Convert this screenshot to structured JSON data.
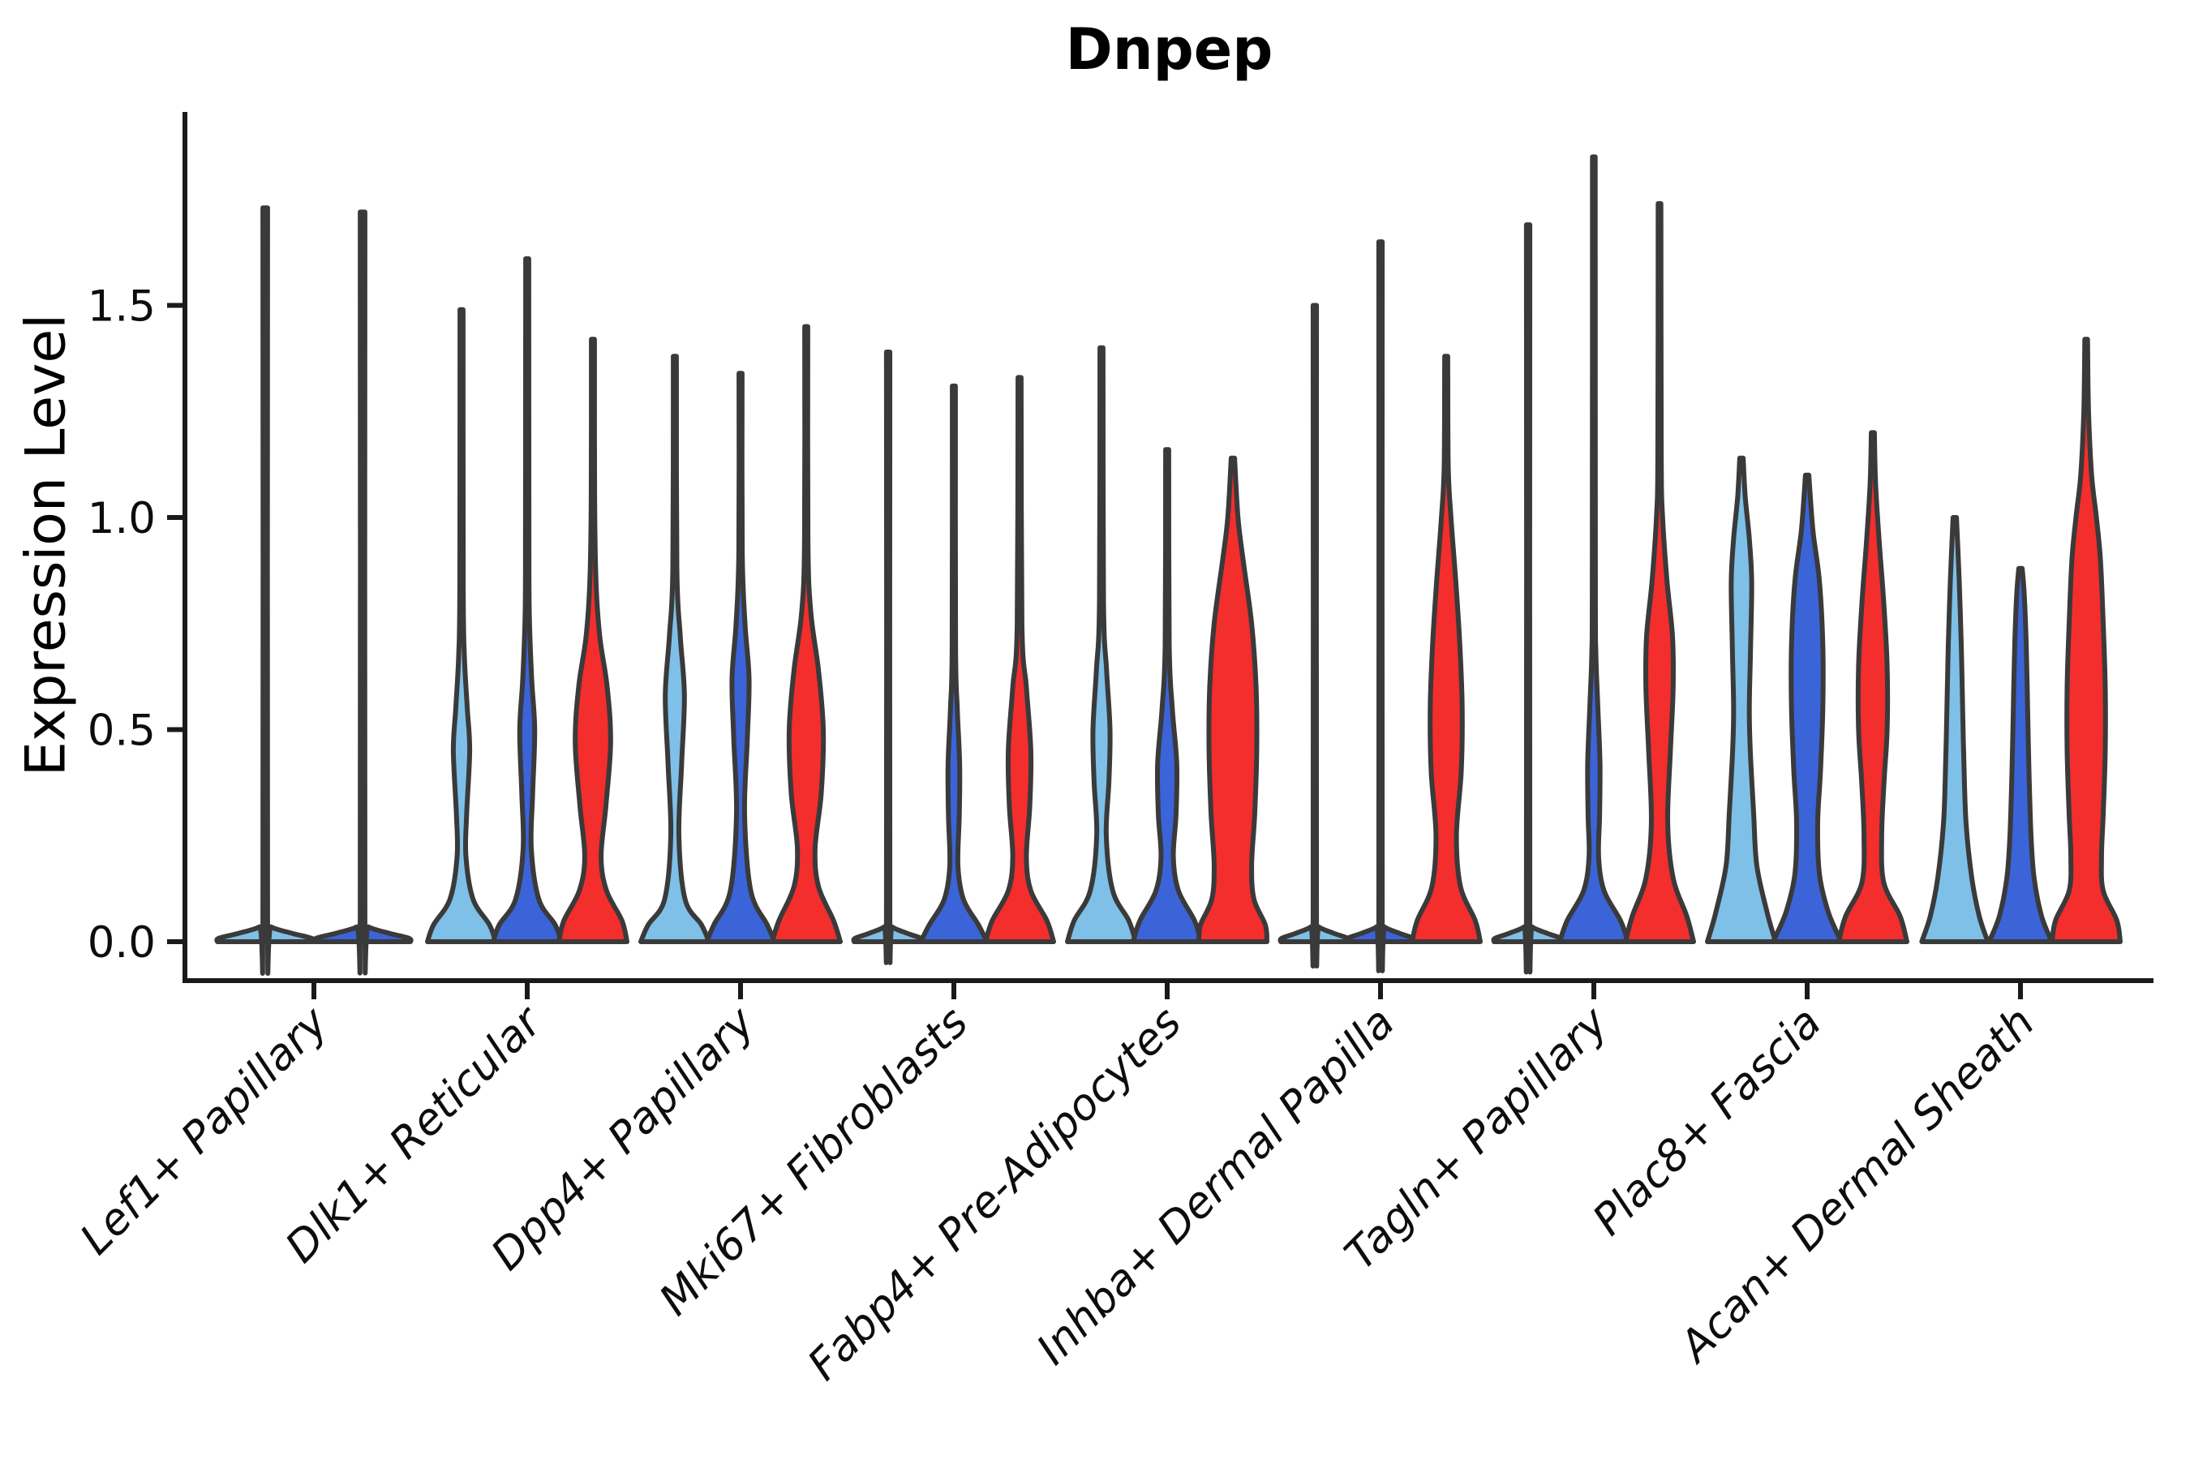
{
  "chart_data": {
    "type": "violin",
    "title": "Dnpep",
    "ylabel": "Expression Level",
    "xlabel": "",
    "grid": false,
    "legend": "none",
    "ylim": [
      -0.09,
      1.95
    ],
    "ytick_labels": [
      "0.0",
      "0.5",
      "1.0",
      "1.5"
    ],
    "ytick_values": [
      0,
      0.5,
      1.0,
      1.5
    ],
    "categories": [
      "Lef1+ Papillary",
      "Dlk1+ Reticular",
      "Dpp4+ Papillary",
      "Mki67+ Fibroblasts",
      "Fabp4+ Pre-Adipocytes",
      "Inhba+ Dermal Papilla",
      "Tagln+ Papillary",
      "Plac8+ Fascia",
      "Acan+ Dermal Sheath"
    ],
    "splits": [
      {
        "name": "light-blue",
        "color": "#7EC0E8"
      },
      {
        "name": "royal-blue",
        "color": "#3B64D8"
      },
      {
        "name": "red",
        "color": "#F42D2D"
      }
    ],
    "outline_color": "#3A3A3A",
    "axis_color": "#1a1a1a",
    "groups": [
      {
        "category": "Lef1+ Papillary",
        "violins": [
          {
            "split": 0,
            "max": 1.73,
            "flat": true
          },
          {
            "split": 1,
            "max": 1.72,
            "flat": true
          }
        ]
      },
      {
        "category": "Dlk1+ Reticular",
        "violins": [
          {
            "split": 0,
            "max": 1.49,
            "profile": [
              [
                0,
                1
              ],
              [
                0.04,
                0.82
              ],
              [
                0.1,
                0.34
              ],
              [
                0.2,
                0.13
              ],
              [
                0.3,
                0.15
              ],
              [
                0.45,
                0.24
              ],
              [
                0.55,
                0.17
              ],
              [
                0.68,
                0.08
              ],
              [
                0.85,
                0.05
              ],
              [
                1.49,
                0.045
              ]
            ]
          },
          {
            "split": 1,
            "max": 1.61,
            "profile": [
              [
                0,
                1
              ],
              [
                0.04,
                0.82
              ],
              [
                0.1,
                0.34
              ],
              [
                0.22,
                0.12
              ],
              [
                0.35,
                0.16
              ],
              [
                0.5,
                0.22
              ],
              [
                0.62,
                0.13
              ],
              [
                0.78,
                0.06
              ],
              [
                1.0,
                0.05
              ],
              [
                1.61,
                0.045
              ]
            ]
          },
          {
            "split": 2,
            "max": 1.42,
            "profile": [
              [
                0,
                1
              ],
              [
                0.05,
                0.85
              ],
              [
                0.12,
                0.4
              ],
              [
                0.2,
                0.24
              ],
              [
                0.32,
                0.38
              ],
              [
                0.47,
                0.52
              ],
              [
                0.6,
                0.42
              ],
              [
                0.72,
                0.2
              ],
              [
                0.85,
                0.09
              ],
              [
                1.05,
                0.05
              ],
              [
                1.42,
                0.045
              ]
            ]
          }
        ]
      },
      {
        "category": "Dpp4+ Papillary",
        "violins": [
          {
            "split": 0,
            "max": 1.38,
            "profile": [
              [
                0,
                1
              ],
              [
                0.04,
                0.78
              ],
              [
                0.1,
                0.3
              ],
              [
                0.25,
                0.12
              ],
              [
                0.42,
                0.2
              ],
              [
                0.58,
                0.28
              ],
              [
                0.72,
                0.16
              ],
              [
                0.88,
                0.06
              ],
              [
                1.38,
                0.045
              ]
            ]
          },
          {
            "split": 1,
            "max": 1.34,
            "profile": [
              [
                0,
                1
              ],
              [
                0.04,
                0.78
              ],
              [
                0.12,
                0.3
              ],
              [
                0.3,
                0.12
              ],
              [
                0.48,
                0.2
              ],
              [
                0.62,
                0.25
              ],
              [
                0.75,
                0.13
              ],
              [
                0.92,
                0.05
              ],
              [
                1.34,
                0.045
              ]
            ]
          },
          {
            "split": 2,
            "max": 1.45,
            "profile": [
              [
                0,
                1
              ],
              [
                0.05,
                0.8
              ],
              [
                0.13,
                0.36
              ],
              [
                0.22,
                0.26
              ],
              [
                0.35,
                0.44
              ],
              [
                0.5,
                0.5
              ],
              [
                0.64,
                0.36
              ],
              [
                0.78,
                0.13
              ],
              [
                0.95,
                0.05
              ],
              [
                1.45,
                0.045
              ]
            ]
          }
        ]
      },
      {
        "category": "Mki67+ Fibroblasts",
        "violins": [
          {
            "split": 0,
            "max": 1.39,
            "flat": true
          },
          {
            "split": 1,
            "max": 1.31,
            "profile": [
              [
                0,
                0.97
              ],
              [
                0.04,
                0.72
              ],
              [
                0.1,
                0.28
              ],
              [
                0.18,
                0.12
              ],
              [
                0.3,
                0.16
              ],
              [
                0.42,
                0.17
              ],
              [
                0.55,
                0.1
              ],
              [
                0.7,
                0.05
              ],
              [
                1.31,
                0.045
              ]
            ]
          },
          {
            "split": 2,
            "max": 1.33,
            "profile": [
              [
                0,
                1
              ],
              [
                0.05,
                0.8
              ],
              [
                0.12,
                0.33
              ],
              [
                0.2,
                0.2
              ],
              [
                0.32,
                0.3
              ],
              [
                0.45,
                0.33
              ],
              [
                0.6,
                0.2
              ],
              [
                0.75,
                0.07
              ],
              [
                1.33,
                0.045
              ]
            ]
          }
        ]
      },
      {
        "category": "Fabp4+ Pre-Adipocytes",
        "violins": [
          {
            "split": 0,
            "max": 1.4,
            "profile": [
              [
                0,
                1
              ],
              [
                0.05,
                0.8
              ],
              [
                0.12,
                0.33
              ],
              [
                0.25,
                0.14
              ],
              [
                0.38,
                0.22
              ],
              [
                0.5,
                0.25
              ],
              [
                0.64,
                0.15
              ],
              [
                0.8,
                0.06
              ],
              [
                1.4,
                0.045
              ]
            ]
          },
          {
            "split": 1,
            "max": 1.16,
            "profile": [
              [
                0,
                1
              ],
              [
                0.05,
                0.8
              ],
              [
                0.12,
                0.33
              ],
              [
                0.2,
                0.18
              ],
              [
                0.3,
                0.26
              ],
              [
                0.42,
                0.28
              ],
              [
                0.55,
                0.15
              ],
              [
                0.7,
                0.06
              ],
              [
                1.16,
                0.045
              ]
            ]
          },
          {
            "split": 2,
            "max": 1.14,
            "profile": [
              [
                0,
                1
              ],
              [
                0.04,
                0.95
              ],
              [
                0.1,
                0.62
              ],
              [
                0.18,
                0.55
              ],
              [
                0.3,
                0.64
              ],
              [
                0.45,
                0.7
              ],
              [
                0.6,
                0.68
              ],
              [
                0.75,
                0.55
              ],
              [
                0.9,
                0.3
              ],
              [
                1.0,
                0.15
              ],
              [
                1.14,
                0.05
              ]
            ]
          }
        ]
      },
      {
        "category": "Inhba+ Dermal Papilla",
        "violins": [
          {
            "split": 0,
            "max": 1.5,
            "flat": true
          },
          {
            "split": 1,
            "max": 1.65,
            "flat": true
          },
          {
            "split": 2,
            "max": 1.38,
            "profile": [
              [
                0,
                1
              ],
              [
                0.05,
                0.85
              ],
              [
                0.13,
                0.42
              ],
              [
                0.25,
                0.3
              ],
              [
                0.4,
                0.44
              ],
              [
                0.55,
                0.47
              ],
              [
                0.7,
                0.4
              ],
              [
                0.85,
                0.28
              ],
              [
                1.0,
                0.14
              ],
              [
                1.12,
                0.06
              ],
              [
                1.38,
                0.045
              ]
            ]
          }
        ]
      },
      {
        "category": "Tagln+ Papillary",
        "violins": [
          {
            "split": 0,
            "max": 1.69,
            "flat": true
          },
          {
            "split": 1,
            "max": 1.85,
            "profile": [
              [
                0,
                1
              ],
              [
                0.05,
                0.78
              ],
              [
                0.12,
                0.3
              ],
              [
                0.2,
                0.14
              ],
              [
                0.3,
                0.17
              ],
              [
                0.42,
                0.18
              ],
              [
                0.55,
                0.12
              ],
              [
                0.68,
                0.06
              ],
              [
                0.85,
                0.045
              ],
              [
                1.85,
                0.04
              ]
            ]
          },
          {
            "split": 2,
            "max": 1.74,
            "profile": [
              [
                0,
                1
              ],
              [
                0.06,
                0.8
              ],
              [
                0.15,
                0.4
              ],
              [
                0.28,
                0.24
              ],
              [
                0.45,
                0.32
              ],
              [
                0.6,
                0.4
              ],
              [
                0.72,
                0.38
              ],
              [
                0.85,
                0.22
              ],
              [
                1.0,
                0.09
              ],
              [
                1.15,
                0.05
              ],
              [
                1.74,
                0.04
              ]
            ]
          }
        ]
      },
      {
        "category": "Plac8+ Fascia",
        "violins": [
          {
            "split": 0,
            "max": 1.14,
            "profile": [
              [
                0,
                1
              ],
              [
                0.07,
                0.75
              ],
              [
                0.18,
                0.45
              ],
              [
                0.3,
                0.36
              ],
              [
                0.45,
                0.26
              ],
              [
                0.55,
                0.23
              ],
              [
                0.7,
                0.27
              ],
              [
                0.85,
                0.3
              ],
              [
                0.95,
                0.23
              ],
              [
                1.05,
                0.11
              ],
              [
                1.14,
                0.05
              ]
            ]
          },
          {
            "split": 1,
            "max": 1.1,
            "profile": [
              [
                0,
                1
              ],
              [
                0.07,
                0.62
              ],
              [
                0.16,
                0.36
              ],
              [
                0.28,
                0.31
              ],
              [
                0.4,
                0.39
              ],
              [
                0.55,
                0.46
              ],
              [
                0.7,
                0.46
              ],
              [
                0.85,
                0.36
              ],
              [
                0.97,
                0.17
              ],
              [
                1.1,
                0.05
              ]
            ]
          },
          {
            "split": 2,
            "max": 1.2,
            "profile": [
              [
                0,
                1
              ],
              [
                0.06,
                0.8
              ],
              [
                0.14,
                0.32
              ],
              [
                0.25,
                0.26
              ],
              [
                0.38,
                0.33
              ],
              [
                0.5,
                0.42
              ],
              [
                0.65,
                0.42
              ],
              [
                0.8,
                0.32
              ],
              [
                0.95,
                0.18
              ],
              [
                1.08,
                0.08
              ],
              [
                1.2,
                0.045
              ]
            ]
          }
        ]
      },
      {
        "category": "Acan+ Dermal Sheath",
        "violins": [
          {
            "split": 0,
            "max": 1.0,
            "profile": [
              [
                0,
                0.97
              ],
              [
                0.06,
                0.72
              ],
              [
                0.15,
                0.5
              ],
              [
                0.28,
                0.33
              ],
              [
                0.42,
                0.27
              ],
              [
                0.55,
                0.23
              ],
              [
                0.7,
                0.19
              ],
              [
                0.85,
                0.13
              ],
              [
                1.0,
                0.05
              ]
            ]
          },
          {
            "split": 1,
            "max": 0.88,
            "profile": [
              [
                0,
                0.92
              ],
              [
                0.06,
                0.62
              ],
              [
                0.15,
                0.4
              ],
              [
                0.25,
                0.31
              ],
              [
                0.4,
                0.25
              ],
              [
                0.55,
                0.21
              ],
              [
                0.7,
                0.17
              ],
              [
                0.82,
                0.11
              ],
              [
                0.88,
                0.05
              ]
            ]
          },
          {
            "split": 2,
            "max": 1.42,
            "profile": [
              [
                0,
                1
              ],
              [
                0.05,
                0.9
              ],
              [
                0.12,
                0.5
              ],
              [
                0.2,
                0.45
              ],
              [
                0.3,
                0.5
              ],
              [
                0.45,
                0.56
              ],
              [
                0.6,
                0.56
              ],
              [
                0.75,
                0.5
              ],
              [
                0.9,
                0.42
              ],
              [
                1.0,
                0.3
              ],
              [
                1.1,
                0.16
              ],
              [
                1.25,
                0.07
              ],
              [
                1.42,
                0.04
              ]
            ]
          }
        ]
      }
    ]
  }
}
